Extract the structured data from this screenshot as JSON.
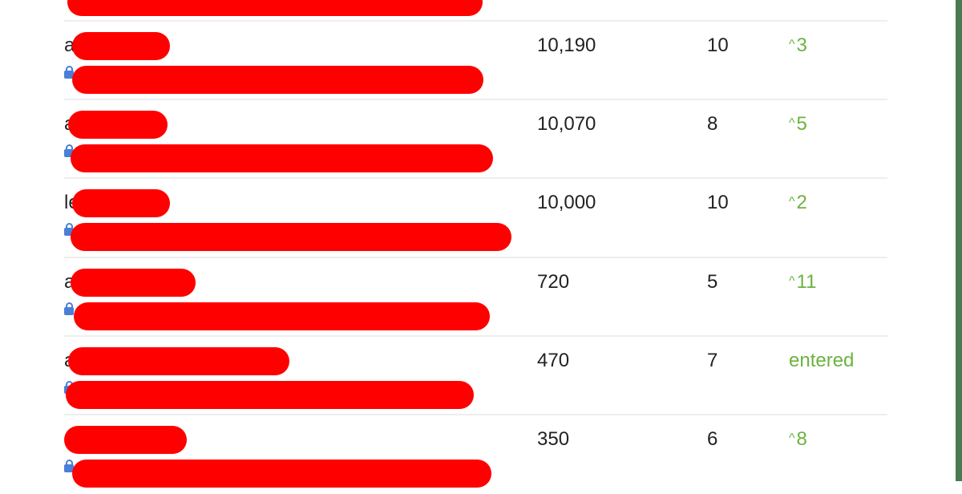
{
  "rows": [
    {
      "name_fragment": "a",
      "score": "10,190",
      "count": "10",
      "change": "3",
      "change_type": "up"
    },
    {
      "name_fragment": "a",
      "score": "10,070",
      "count": "8",
      "change": "5",
      "change_type": "up"
    },
    {
      "name_fragment": "le",
      "score": "10,000",
      "count": "10",
      "change": "2",
      "change_type": "up"
    },
    {
      "name_fragment": "a",
      "score": "720",
      "count": "5",
      "change": "11",
      "change_type": "up"
    },
    {
      "name_fragment": "a",
      "score": "470",
      "count": "7",
      "change": "entered",
      "change_type": "new"
    },
    {
      "name_fragment": "",
      "score": "350",
      "count": "6",
      "change": "8",
      "change_type": "up"
    }
  ],
  "colors": {
    "positive": "#6cb33f",
    "redaction": "#ff0000",
    "scrollbar": "#4a7a50",
    "lock": "#4a7fd8"
  },
  "icons": {
    "change_up": "caret-up-icon",
    "private": "lock-icon"
  }
}
